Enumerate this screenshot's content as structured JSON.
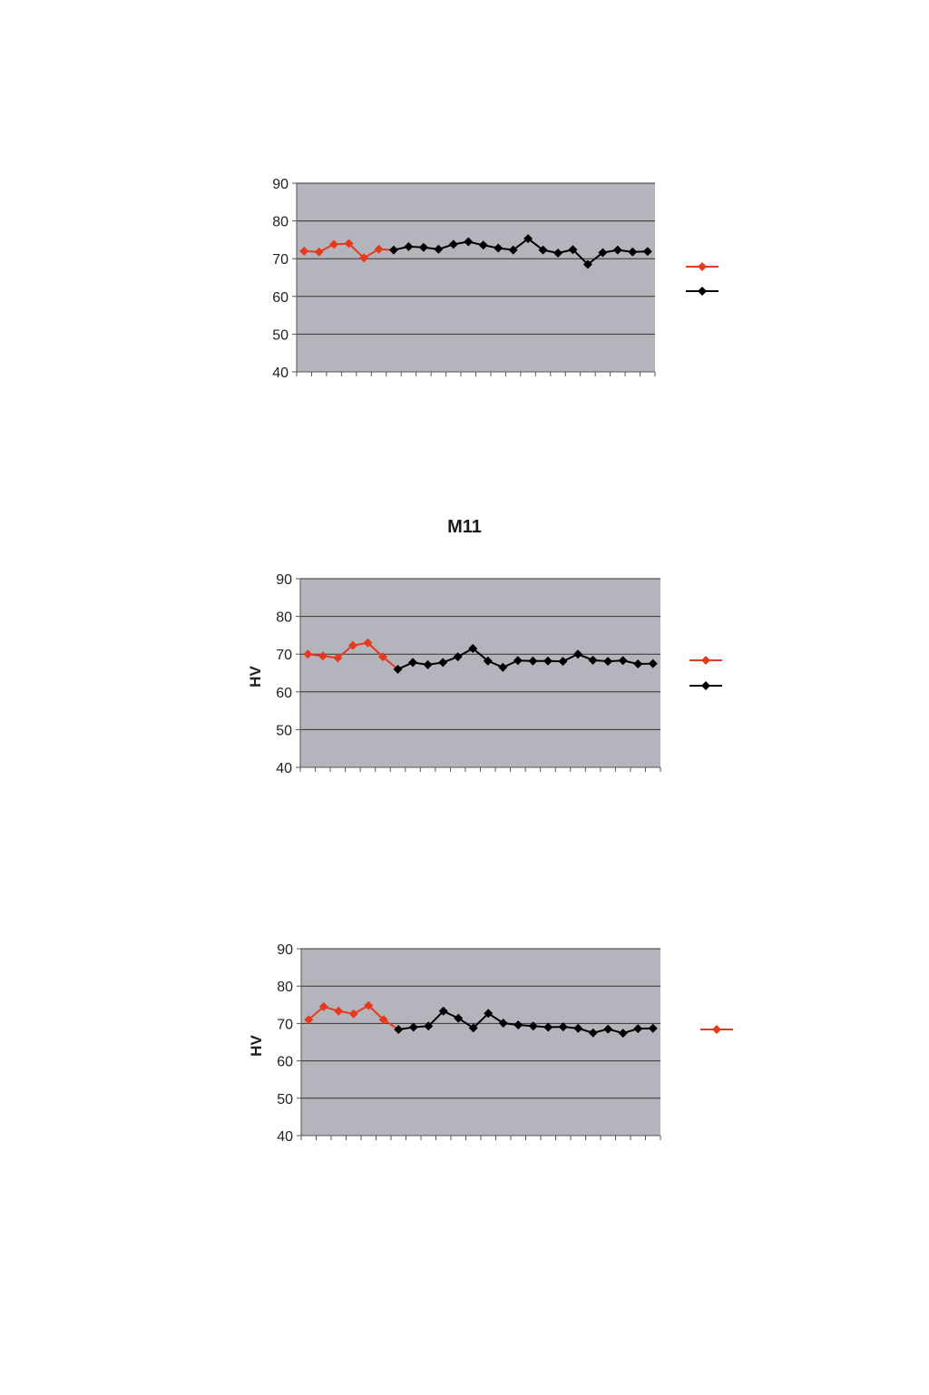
{
  "chart_data": [
    {
      "type": "line",
      "title": "",
      "ylabel": "",
      "xlabel": "",
      "ylim": [
        40,
        90
      ],
      "yticks": [
        "90",
        "80",
        "70",
        "60",
        "50",
        "40"
      ],
      "grid": true,
      "legend": "right",
      "series": [
        {
          "name": "",
          "color": "#e8391d",
          "x": [
            1,
            2,
            3,
            4,
            5,
            6
          ],
          "values": [
            72,
            71.8,
            73.8,
            74,
            70.2,
            72.5
          ]
        },
        {
          "name": "",
          "color": "#000000",
          "x": [
            7,
            8,
            9,
            10,
            11,
            12,
            13,
            14,
            15,
            16,
            17,
            18,
            19,
            20,
            21,
            22,
            23,
            24
          ],
          "values": [
            72.3,
            73.2,
            73,
            72.5,
            73.8,
            74.5,
            73.6,
            72.8,
            72.3,
            75.3,
            72.3,
            71.5,
            72.4,
            68.5,
            71.6,
            72.3,
            71.8,
            71.9
          ]
        }
      ],
      "n_categories": 24
    },
    {
      "type": "line",
      "title": "M11",
      "ylabel": "HV",
      "xlabel": "",
      "ylim": [
        40,
        90
      ],
      "yticks": [
        "90",
        "80",
        "70",
        "60",
        "50",
        "40"
      ],
      "grid": true,
      "legend": "right",
      "series": [
        {
          "name": "",
          "color": "#e8391d",
          "x": [
            1,
            2,
            3,
            4,
            5,
            6
          ],
          "values": [
            70,
            69.5,
            69,
            72.3,
            73,
            69.3
          ]
        },
        {
          "name": "",
          "color": "#000000",
          "x": [
            7,
            8,
            9,
            10,
            11,
            12,
            13,
            14,
            15,
            16,
            17,
            18,
            19,
            20,
            21,
            22,
            23,
            24
          ],
          "values": [
            66,
            67.8,
            67.2,
            67.8,
            69.3,
            71.5,
            68.2,
            66.5,
            68.3,
            68.2,
            68.2,
            68.1,
            70,
            68.4,
            68.1,
            68.3,
            67.4,
            67.5
          ]
        }
      ],
      "n_categories": 24
    },
    {
      "type": "line",
      "title": "",
      "ylabel": "HV",
      "xlabel": "",
      "ylim": [
        40,
        90
      ],
      "yticks": [
        "90",
        "80",
        "70",
        "60",
        "50",
        "40"
      ],
      "grid": true,
      "legend": "right",
      "series": [
        {
          "name": "",
          "color": "#e8391d",
          "x": [
            1,
            2,
            3,
            4,
            5,
            6
          ],
          "values": [
            71,
            74.5,
            73.3,
            72.6,
            74.8,
            71
          ]
        },
        {
          "name": "",
          "color": "#000000",
          "x": [
            7,
            8,
            9,
            10,
            11,
            12,
            13,
            14,
            15,
            16,
            17,
            18,
            19,
            20,
            21,
            22,
            23,
            24
          ],
          "values": [
            68.4,
            69,
            69.3,
            73.3,
            71.4,
            68.8,
            72.7,
            70.1,
            69.6,
            69.3,
            69,
            69.1,
            68.7,
            67.5,
            68.5,
            67.4,
            68.6,
            68.7
          ]
        }
      ],
      "n_categories": 24
    }
  ]
}
